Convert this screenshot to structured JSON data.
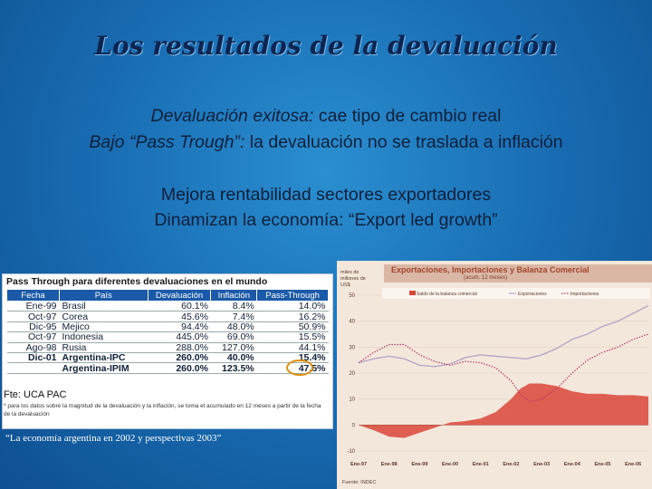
{
  "slide": {
    "title": "Los resultados de la  devaluación",
    "line1_italic": "Devaluación exitosa:",
    "line1_rest": " cae tipo de cambio real",
    "line2_italic": "Bajo “Pass Trough”:",
    "line2_rest": " la devaluación no se traslada a inflación",
    "line3": "Mejora rentabilidad sectores exportadores",
    "line4": "Dinamizan la economía: “Export led growth”",
    "caption": "“La economía argentina en 2002 y perspectivas 2003”"
  },
  "table": {
    "title": "Pass Through para diferentes devaluaciones en el mundo",
    "headers": [
      "Fecha",
      "País",
      "Devaluación",
      "Inflación",
      "Pass-Through"
    ],
    "rows": [
      [
        "Ene-99",
        "Brasil",
        "60.1%",
        "8.4%",
        "14.0%"
      ],
      [
        "Oct-97",
        "Corea",
        "45.6%",
        "7.4%",
        "16.2%"
      ],
      [
        "Dic-95",
        "Mejico",
        "94.4%",
        "48.0%",
        "50.9%"
      ],
      [
        "Oct-97",
        "Indonesia",
        "445.0%",
        "69.0%",
        "15.5%"
      ],
      [
        "Ago-98",
        "Rusia",
        "288.0%",
        "127.0%",
        "44.1%"
      ],
      [
        "Dic-01",
        "Argentina-IPC",
        "260.0%",
        "40.0%",
        "15.4%"
      ],
      [
        "",
        "Argentina-IPIM",
        "260.0%",
        "123.5%",
        "47.5%"
      ]
    ],
    "source": "Fte: UCA PAC",
    "note": "* para los datos sobre la magnitud de la devaluación y la inflación, se toma el acumulado en 12 meses a partir de la fecha de la devaluación"
  },
  "chart_data": {
    "type": "line",
    "title": "Exportaciones, Importaciones y Balanza Comercial",
    "subtitle": "(acum. 12 meses)",
    "ylabel": "miles de millones de US$",
    "source": "Fuente: INDEC",
    "ylim": [
      -10,
      50
    ],
    "yticks": [
      -10,
      0,
      10,
      20,
      30,
      40,
      50
    ],
    "xticks": [
      "Ene-97",
      "Ene-98",
      "Ene-99",
      "Ene-00",
      "Ene-01",
      "Ene-02",
      "Ene-03",
      "Ene-04",
      "Ene-05",
      "Ene-06"
    ],
    "legend": [
      "Saldo de la balanza comercial",
      "Exportaciones",
      "Importaciones"
    ],
    "grid": true,
    "series": [
      {
        "name": "Saldo de la balanza comercial",
        "color": "#d9473a",
        "x": [
          0,
          0.5,
          1,
          1.5,
          2,
          2.5,
          3,
          3.5,
          4,
          4.5,
          5,
          5.3,
          5.6,
          6,
          6.5,
          7,
          7.5,
          8,
          8.5,
          9,
          9.5
        ],
        "values": [
          0,
          -2,
          -4.5,
          -5,
          -3,
          -1,
          1,
          1.5,
          2.5,
          5,
          10,
          14,
          16,
          16,
          15,
          13,
          12,
          12,
          11.5,
          11.5,
          11
        ]
      },
      {
        "name": "Exportaciones",
        "color": "#b6a8c8",
        "x": [
          0,
          0.5,
          1,
          1.5,
          2,
          2.5,
          3,
          3.5,
          4,
          4.5,
          5,
          5.5,
          6,
          6.5,
          7,
          7.5,
          8,
          8.5,
          9,
          9.5
        ],
        "values": [
          24,
          25.5,
          26.5,
          25.5,
          23,
          22.5,
          23.5,
          26,
          27,
          26.5,
          26,
          25.5,
          27,
          29.5,
          33,
          35,
          38,
          40,
          43,
          46
        ]
      },
      {
        "name": "Importaciones",
        "color": "#c03a6a",
        "x": [
          0,
          0.5,
          1,
          1.5,
          2,
          2.5,
          3,
          3.5,
          4,
          4.5,
          5,
          5.3,
          5.6,
          6,
          6.5,
          7,
          7.5,
          8,
          8.5,
          9,
          9.5
        ],
        "values": [
          24,
          28,
          31,
          31,
          27,
          24.5,
          23,
          24.5,
          24,
          22,
          17,
          12,
          9,
          10,
          14,
          20,
          25,
          28,
          30,
          33,
          35
        ]
      }
    ]
  },
  "colors": {
    "background": "#1a6fb5",
    "title": "#0d2550",
    "table_header": "#1a5aa8",
    "highlight": "#e08e0c"
  }
}
